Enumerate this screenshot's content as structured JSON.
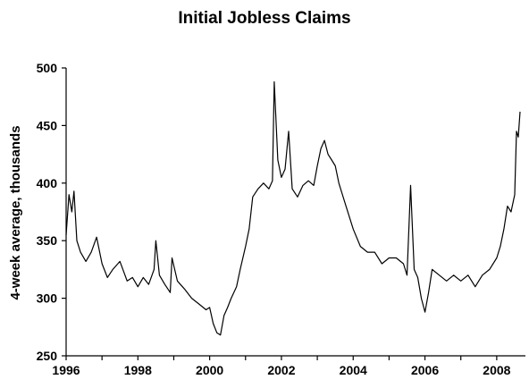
{
  "chart_data": {
    "type": "line",
    "title": "Initial Jobless Claims",
    "xlabel": "",
    "ylabel": "4-week average, thousands",
    "xlim": [
      1996,
      2008.8
    ],
    "ylim": [
      250,
      500
    ],
    "xticks": [
      1996,
      1998,
      2000,
      2002,
      2004,
      2006,
      2008
    ],
    "yticks": [
      250,
      300,
      350,
      400,
      450,
      500
    ],
    "xtick_labels": [
      "1996",
      "1998",
      "2000",
      "2002",
      "2004",
      "2006",
      "2008"
    ],
    "ytick_labels": [
      "250",
      "300",
      "350",
      "400",
      "450",
      "500"
    ],
    "grid": false,
    "legend": "none",
    "colors": {
      "line": "#000000",
      "axes": "#000000",
      "background": "#ffffff"
    },
    "series": [
      {
        "x": [
          1996.0,
          1996.08,
          1996.16,
          1996.22,
          1996.3,
          1996.4,
          1996.55,
          1996.7,
          1996.85,
          1997.0,
          1997.15,
          1997.3,
          1997.5,
          1997.7,
          1997.85,
          1998.0,
          1998.15,
          1998.3,
          1998.45,
          1998.5,
          1998.6,
          1998.75,
          1998.9,
          1998.95,
          1999.1,
          1999.3,
          1999.5,
          1999.7,
          1999.9,
          2000.0,
          2000.1,
          2000.2,
          2000.3,
          2000.4,
          2000.5,
          2000.6,
          2000.75,
          2000.85,
          2001.0,
          2001.1,
          2001.2,
          2001.35,
          2001.5,
          2001.65,
          2001.75,
          2001.8,
          2001.9,
          2002.0,
          2002.1,
          2002.2,
          2002.3,
          2002.45,
          2002.6,
          2002.75,
          2002.9,
          2003.0,
          2003.1,
          2003.2,
          2003.3,
          2003.4,
          2003.5,
          2003.6,
          2003.8,
          2004.0,
          2004.2,
          2004.4,
          2004.6,
          2004.8,
          2005.0,
          2005.2,
          2005.4,
          2005.5,
          2005.6,
          2005.7,
          2005.8,
          2005.9,
          2006.0,
          2006.1,
          2006.2,
          2006.4,
          2006.6,
          2006.8,
          2007.0,
          2007.2,
          2007.4,
          2007.6,
          2007.8,
          2008.0,
          2008.1,
          2008.2,
          2008.3,
          2008.4,
          2008.5,
          2008.55,
          2008.6,
          2008.65
        ],
        "y": [
          355,
          390,
          375,
          393,
          350,
          340,
          332,
          340,
          353,
          330,
          318,
          325,
          332,
          315,
          318,
          310,
          318,
          312,
          325,
          350,
          320,
          312,
          305,
          335,
          315,
          308,
          300,
          295,
          290,
          292,
          278,
          270,
          268,
          285,
          292,
          300,
          310,
          325,
          345,
          360,
          388,
          395,
          400,
          395,
          402,
          488,
          420,
          405,
          412,
          445,
          395,
          388,
          398,
          402,
          398,
          415,
          430,
          437,
          425,
          420,
          415,
          400,
          380,
          360,
          345,
          340,
          340,
          330,
          335,
          335,
          330,
          320,
          398,
          325,
          318,
          300,
          288,
          305,
          325,
          320,
          315,
          320,
          315,
          320,
          310,
          320,
          325,
          335,
          345,
          360,
          380,
          375,
          390,
          445,
          440,
          462
        ]
      }
    ]
  }
}
